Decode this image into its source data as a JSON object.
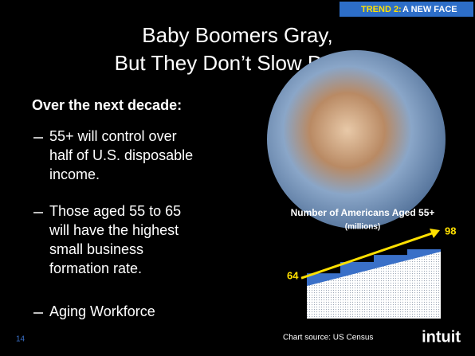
{
  "tag": {
    "label": "TREND 2:",
    "text": "A NEW FACE"
  },
  "title": [
    "Baby Boomers Gray,",
    "But They Don’t Slow Down"
  ],
  "subheading": "Over the next decade:",
  "bullets": [
    [
      "55+ will control over",
      "half of U.S. disposable",
      "income."
    ],
    [
      "Those aged 55 to 65",
      "will have the highest",
      "small business",
      "formation rate."
    ],
    [
      "Aging Workforce"
    ]
  ],
  "chart_data": {
    "type": "bar",
    "title": "Number of Americans Aged 55+",
    "subtitle": "(millions)",
    "categories": [
      null,
      null,
      null,
      null
    ],
    "values": [
      64,
      80,
      90,
      98
    ],
    "color": "#3a70c8",
    "label_color": "#ffe000",
    "source": "Chart source:  US Census"
  },
  "page_number": "14",
  "logo": "intuit"
}
